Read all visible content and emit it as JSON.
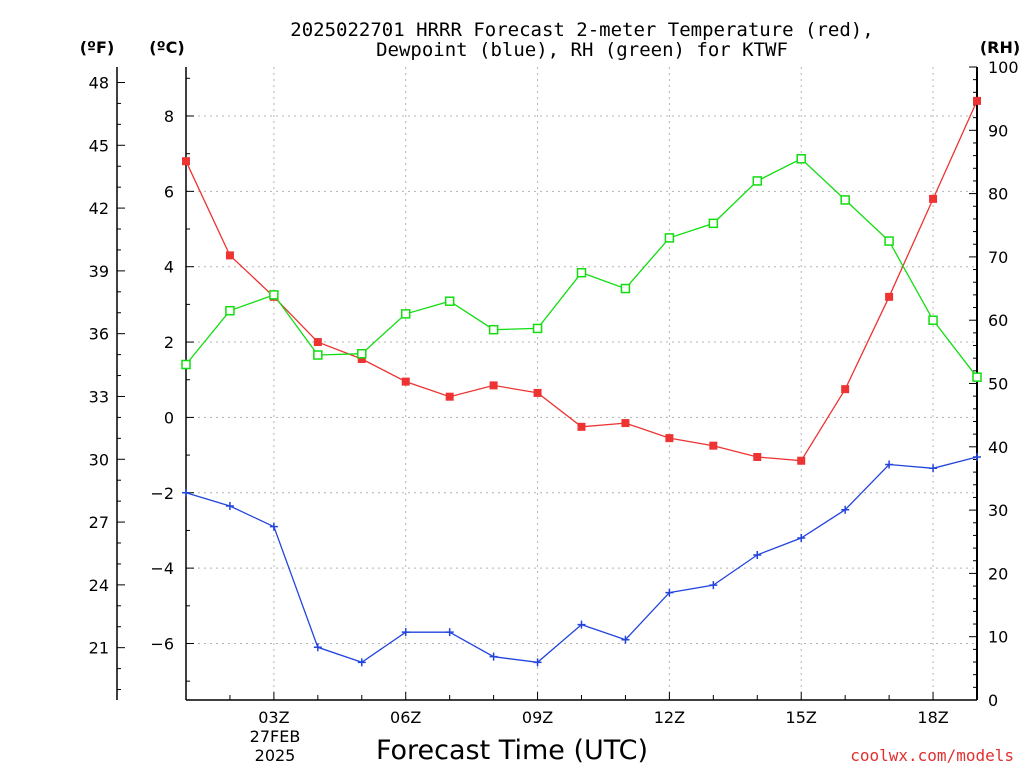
{
  "chart_data": {
    "type": "line",
    "title_lines": [
      "2025022701 HRRR Forecast 2-meter Temperature (red),",
      "Dewpoint (blue), RH (green) for KTWF"
    ],
    "xlabel": "Forecast Time (UTC)",
    "x_ticks": [
      "03Z",
      "06Z",
      "09Z",
      "12Z",
      "15Z",
      "18Z"
    ],
    "x_tick_values": [
      3,
      6,
      9,
      12,
      15,
      18
    ],
    "x_date_label": [
      "27FEB",
      "2025"
    ],
    "x": [
      1,
      2,
      3,
      4,
      5,
      6,
      7,
      8,
      9,
      10,
      11,
      12,
      13,
      14,
      15,
      16,
      17,
      18,
      19
    ],
    "xlim": [
      1,
      19
    ],
    "left_unit_f": "(ºF)",
    "left_unit_c": "(ºC)",
    "right_unit": "(RH)",
    "yf_ticks": [
      21,
      24,
      27,
      30,
      33,
      36,
      39,
      42,
      45,
      48
    ],
    "yc_ticks": [
      -6,
      -4,
      -2,
      0,
      2,
      4,
      6,
      8
    ],
    "yc_lim": [
      -7.5,
      9.3
    ],
    "rh_ticks": [
      0,
      10,
      20,
      30,
      40,
      50,
      60,
      70,
      80,
      90,
      100
    ],
    "rh_lim": [
      0,
      100
    ],
    "grid": true,
    "series": [
      {
        "name": "Temperature",
        "axis": "celsius",
        "color": "#ee3333",
        "marker": "filled-square",
        "values": [
          6.8,
          4.3,
          3.2,
          2.0,
          1.55,
          0.95,
          0.55,
          0.85,
          0.65,
          -0.25,
          -0.15,
          -0.55,
          -0.75,
          -1.05,
          -1.15,
          0.75,
          3.2,
          5.8,
          8.4
        ]
      },
      {
        "name": "Dewpoint",
        "axis": "celsius",
        "color": "#2244dd",
        "marker": "plus",
        "values": [
          -2.0,
          -2.35,
          -2.9,
          -6.1,
          -6.5,
          -5.7,
          -5.7,
          -6.35,
          -6.5,
          -5.5,
          -5.9,
          -4.65,
          -4.45,
          -3.65,
          -3.2,
          -2.45,
          -1.25,
          -1.35,
          -1.05
        ]
      },
      {
        "name": "RH",
        "axis": "rh",
        "color": "#11dd11",
        "marker": "open-square",
        "values": [
          53,
          61.5,
          64,
          54.5,
          54.7,
          61,
          63,
          58.5,
          58.7,
          67.5,
          65,
          73,
          75.3,
          82,
          85.5,
          79,
          72.5,
          60,
          51
        ]
      }
    ]
  },
  "credit": "coolwx.com/models"
}
